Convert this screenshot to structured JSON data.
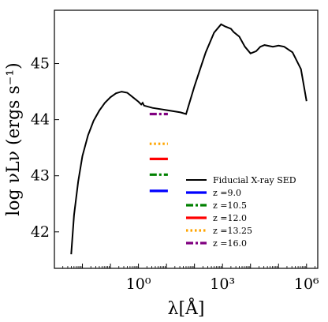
{
  "chart_data": {
    "type": "line",
    "title": "",
    "xlabel": "λ[Å]",
    "ylabel": "log νLν (ergs s⁻¹)",
    "xscale": "log",
    "xlim_log10": [
      -3.0,
      6.4
    ],
    "ylim": [
      41.35,
      45.95
    ],
    "x_ticks": [
      {
        "value_log10": 0,
        "label": "10⁰"
      },
      {
        "value_log10": 3,
        "label": "10³"
      },
      {
        "value_log10": 6,
        "label": "10⁶"
      }
    ],
    "y_ticks": [
      42,
      43,
      44,
      45
    ],
    "grid": false,
    "legend_placement": "lower-right",
    "series": [
      {
        "name": "Fiducial X-ray SED",
        "color": "#000000",
        "style": "solid",
        "points_log10x_y": [
          [
            -2.4,
            41.6
          ],
          [
            -2.3,
            42.3
          ],
          [
            -2.15,
            42.9
          ],
          [
            -2.0,
            43.35
          ],
          [
            -1.8,
            43.72
          ],
          [
            -1.6,
            43.98
          ],
          [
            -1.4,
            44.16
          ],
          [
            -1.2,
            44.3
          ],
          [
            -1.0,
            44.4
          ],
          [
            -0.8,
            44.47
          ],
          [
            -0.6,
            44.5
          ],
          [
            -0.4,
            44.48
          ],
          [
            -0.2,
            44.4
          ],
          [
            0.0,
            44.32
          ],
          [
            0.1,
            44.27
          ],
          [
            0.15,
            44.3
          ],
          [
            0.2,
            44.25
          ],
          [
            0.5,
            44.21
          ],
          [
            1.0,
            44.17
          ],
          [
            1.5,
            44.13
          ],
          [
            1.7,
            44.1
          ],
          [
            2.0,
            44.6
          ],
          [
            2.4,
            45.2
          ],
          [
            2.7,
            45.55
          ],
          [
            2.95,
            45.7
          ],
          [
            3.1,
            45.66
          ],
          [
            3.3,
            45.62
          ],
          [
            3.4,
            45.56
          ],
          [
            3.6,
            45.48
          ],
          [
            3.8,
            45.3
          ],
          [
            4.0,
            45.18
          ],
          [
            4.2,
            45.22
          ],
          [
            4.35,
            45.3
          ],
          [
            4.5,
            45.33
          ],
          [
            4.8,
            45.3
          ],
          [
            5.0,
            45.32
          ],
          [
            5.2,
            45.3
          ],
          [
            5.5,
            45.2
          ],
          [
            5.8,
            44.9
          ],
          [
            6.0,
            44.33
          ]
        ]
      },
      {
        "name": "z =9.0",
        "color": "#0000ff",
        "style": "solid",
        "x_range_log10": [
          0.4,
          1.05
        ],
        "y": 42.73
      },
      {
        "name": "z =10.5",
        "color": "#008000",
        "style": "dashdot",
        "x_range_log10": [
          0.4,
          1.05
        ],
        "y": 43.02
      },
      {
        "name": "z =12.0",
        "color": "#ff0000",
        "style": "solid",
        "x_range_log10": [
          0.4,
          1.05
        ],
        "y": 43.3
      },
      {
        "name": "z =13.25",
        "color": "#ffa500",
        "style": "dotted",
        "x_range_log10": [
          0.4,
          1.05
        ],
        "y": 43.57
      },
      {
        "name": "z =16.0",
        "color": "#800080",
        "style": "dashdot",
        "x_range_log10": [
          0.4,
          1.05
        ],
        "y": 44.1
      }
    ]
  }
}
